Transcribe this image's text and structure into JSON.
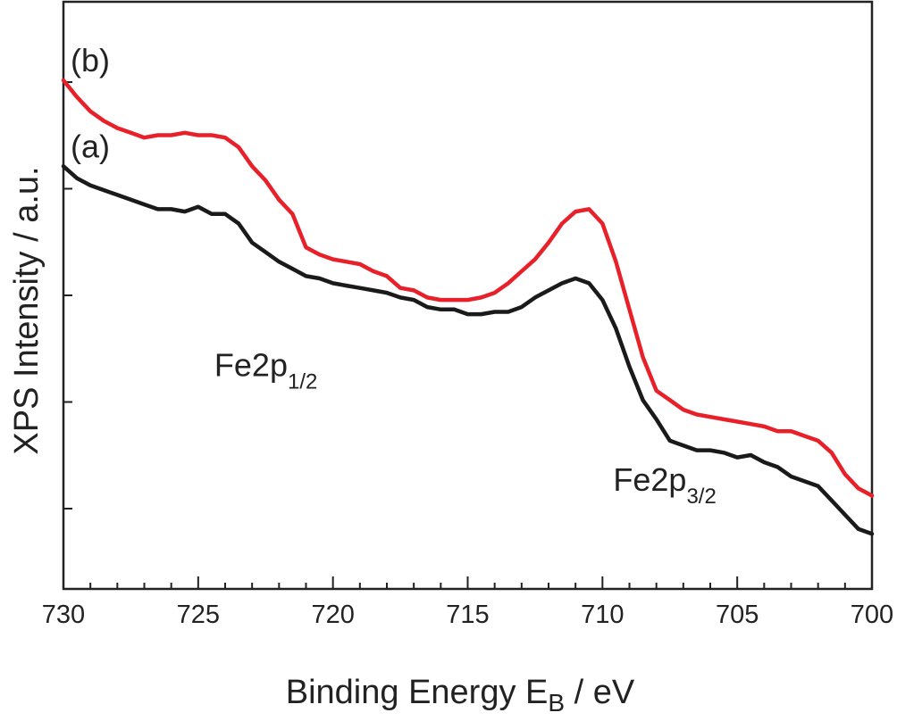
{
  "chart_data": {
    "type": "line",
    "xlabel": "Binding Energy",
    "xlabel_symbol": "E",
    "xlabel_subscript": "B",
    "xlabel_unit": " / eV",
    "ylabel": "XPS Intensity / a.u.",
    "xlim": [
      730,
      700
    ],
    "ylim": [
      0,
      1
    ],
    "x_reversed": true,
    "y_ticks_labeled": false,
    "grid": false,
    "x_ticks": [
      730,
      725,
      720,
      715,
      710,
      705,
      700
    ],
    "x_tick_labels": [
      "730",
      "725",
      "720",
      "715",
      "710",
      "705",
      "700"
    ],
    "x_minor_step": 1,
    "y_tick_count": 5,
    "annotations": [
      {
        "id": "fe2p12",
        "base": "Fe2p",
        "sub": "1/2",
        "x": 724.4,
        "y": 0.38
      },
      {
        "id": "fe2p32",
        "base": "Fe2p",
        "sub": "3/2",
        "x": 709.6,
        "y": 0.14
      }
    ],
    "series": [
      {
        "name": "(a)",
        "color": "#1a1a1a",
        "x": [
          730,
          729.5,
          729,
          728.5,
          728,
          727.5,
          727,
          726.5,
          726,
          725.5,
          725,
          724.5,
          724,
          723.5,
          723,
          722.5,
          722,
          721.5,
          721,
          720.5,
          720,
          719.5,
          719,
          718.5,
          718,
          717.5,
          717,
          716.5,
          716,
          715.5,
          715,
          714.5,
          714,
          713.5,
          713,
          712.5,
          712,
          711.5,
          711,
          710.5,
          710,
          709.5,
          709,
          708.5,
          708,
          707.5,
          707,
          706.5,
          706,
          705.5,
          705,
          704.5,
          704,
          703.5,
          703,
          702.5,
          702,
          701.5,
          701,
          700.5,
          700
        ],
        "y": [
          0.82,
          0.795,
          0.78,
          0.77,
          0.76,
          0.75,
          0.74,
          0.73,
          0.73,
          0.725,
          0.735,
          0.72,
          0.72,
          0.7,
          0.66,
          0.64,
          0.62,
          0.605,
          0.59,
          0.585,
          0.575,
          0.57,
          0.565,
          0.56,
          0.555,
          0.545,
          0.54,
          0.525,
          0.52,
          0.52,
          0.51,
          0.51,
          0.515,
          0.515,
          0.525,
          0.545,
          0.56,
          0.575,
          0.585,
          0.575,
          0.54,
          0.48,
          0.4,
          0.33,
          0.29,
          0.245,
          0.235,
          0.225,
          0.225,
          0.22,
          0.21,
          0.215,
          0.2,
          0.19,
          0.17,
          0.16,
          0.15,
          0.12,
          0.09,
          0.06,
          0.05
        ]
      },
      {
        "name": "(b)",
        "color": "#e8202a",
        "x": [
          730,
          729.5,
          729,
          728.5,
          728,
          727.5,
          727,
          726.5,
          726,
          725.5,
          725,
          724.5,
          724,
          723.5,
          723,
          722.5,
          722,
          721.5,
          721,
          720.5,
          720,
          719.5,
          719,
          718.5,
          718,
          717.5,
          717,
          716.5,
          716,
          715.5,
          715,
          714.5,
          714,
          713.5,
          713,
          712.5,
          712,
          711.5,
          711,
          710.5,
          710,
          709.5,
          709,
          708.5,
          708,
          707.5,
          707,
          706.5,
          706,
          705.5,
          705,
          704.5,
          704,
          703.5,
          703,
          702.5,
          702,
          701.5,
          701,
          700.5,
          700
        ],
        "y": [
          1.0,
          0.965,
          0.935,
          0.915,
          0.9,
          0.89,
          0.88,
          0.885,
          0.885,
          0.89,
          0.885,
          0.885,
          0.88,
          0.86,
          0.82,
          0.79,
          0.75,
          0.72,
          0.65,
          0.635,
          0.625,
          0.62,
          0.615,
          0.6,
          0.59,
          0.565,
          0.56,
          0.545,
          0.54,
          0.54,
          0.54,
          0.545,
          0.555,
          0.575,
          0.6,
          0.625,
          0.66,
          0.7,
          0.725,
          0.73,
          0.7,
          0.62,
          0.52,
          0.42,
          0.35,
          0.33,
          0.31,
          0.3,
          0.295,
          0.29,
          0.285,
          0.28,
          0.275,
          0.265,
          0.265,
          0.255,
          0.245,
          0.22,
          0.175,
          0.145,
          0.13
        ]
      }
    ]
  }
}
